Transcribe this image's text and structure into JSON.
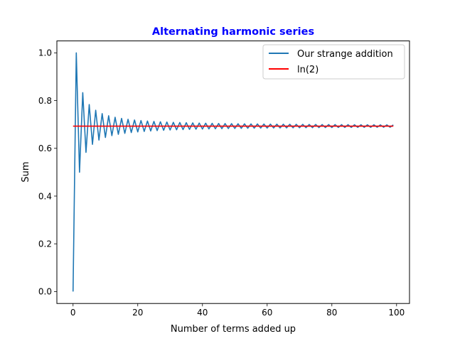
{
  "chart_data": {
    "type": "line",
    "title": "Alternating harmonic series",
    "title_color": "#0000ff",
    "xlabel": "Number of terms added up",
    "ylabel": "Sum",
    "xlim": [
      -5,
      104
    ],
    "ylim": [
      -0.05,
      1.05
    ],
    "xticks": [
      0,
      20,
      40,
      60,
      80,
      100
    ],
    "yticks": [
      0.0,
      0.2,
      0.4,
      0.6,
      0.8,
      1.0
    ],
    "xtick_labels": [
      "0",
      "20",
      "40",
      "60",
      "80",
      "100"
    ],
    "ytick_labels": [
      "0.0",
      "0.2",
      "0.4",
      "0.6",
      "0.8",
      "1.0"
    ],
    "grid": false,
    "legend_position": "top-right",
    "series": [
      {
        "name": "Our strange addition",
        "color": "#1f77b4",
        "x": [
          0,
          1,
          2,
          3,
          4,
          5,
          6,
          7,
          8,
          9,
          10,
          11,
          12,
          13,
          14,
          15,
          16,
          17,
          18,
          19,
          20,
          21,
          22,
          23,
          24,
          25,
          26,
          27,
          28,
          29,
          30,
          31,
          32,
          33,
          34,
          35,
          36,
          37,
          38,
          39,
          40,
          41,
          42,
          43,
          44,
          45,
          46,
          47,
          48,
          49,
          50,
          51,
          52,
          53,
          54,
          55,
          56,
          57,
          58,
          59,
          60,
          61,
          62,
          63,
          64,
          65,
          66,
          67,
          68,
          69,
          70,
          71,
          72,
          73,
          74,
          75,
          76,
          77,
          78,
          79,
          80,
          81,
          82,
          83,
          84,
          85,
          86,
          87,
          88,
          89,
          90,
          91,
          92,
          93,
          94,
          95,
          96,
          97,
          98,
          99
        ],
        "y": [
          0,
          1,
          0.5,
          0.8333,
          0.5833,
          0.7833,
          0.6167,
          0.7595,
          0.6345,
          0.7456,
          0.6456,
          0.7365,
          0.6532,
          0.7301,
          0.6587,
          0.7254,
          0.6629,
          0.7217,
          0.6661,
          0.7188,
          0.6688,
          0.7164,
          0.6709,
          0.7144,
          0.6727,
          0.7127,
          0.6743,
          0.7113,
          0.6756,
          0.7101,
          0.6768,
          0.709,
          0.6778,
          0.7081,
          0.6787,
          0.7073,
          0.6795,
          0.7065,
          0.6802,
          0.7059,
          0.6809,
          0.7053,
          0.6815,
          0.7047,
          0.682,
          0.7042,
          0.6825,
          0.7038,
          0.683,
          0.7034,
          0.6834,
          0.703,
          0.6838,
          0.7026,
          0.6841,
          0.7023,
          0.6845,
          0.702,
          0.6848,
          0.7017,
          0.6851,
          0.7014,
          0.6853,
          0.7012,
          0.6856,
          0.7009,
          0.6858,
          0.7007,
          0.6861,
          0.7005,
          0.6863,
          0.7003,
          0.6865,
          0.7001,
          0.6867,
          0.6999,
          0.6869,
          0.6997,
          0.6871,
          0.6995,
          0.6872,
          0.6994,
          0.6874,
          0.6992,
          0.6875,
          0.6991,
          0.6877,
          0.6989,
          0.6878,
          0.6988,
          0.688,
          0.6987,
          0.6881,
          0.6986,
          0.6882,
          0.6984,
          0.6883,
          0.6983,
          0.6884,
          0.6982
        ]
      },
      {
        "name": "ln(2)",
        "color": "#ff0000",
        "x": [
          0,
          99
        ],
        "y": [
          0.6931,
          0.6931
        ]
      }
    ]
  }
}
